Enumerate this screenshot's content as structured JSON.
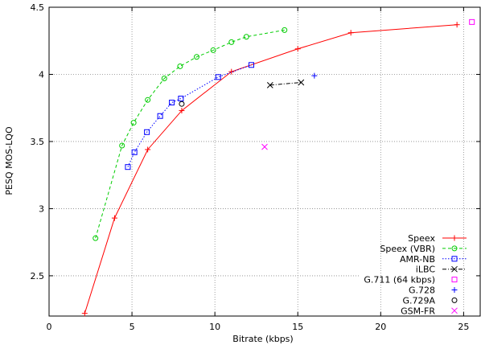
{
  "chart_data": {
    "type": "scatter",
    "title": "",
    "xlabel": "Bitrate (kbps)",
    "ylabel": "PESQ MOS-LQO",
    "xlim": [
      0,
      26
    ],
    "ylim": [
      2.2,
      4.5
    ],
    "xticks": [
      0,
      5,
      10,
      15,
      20,
      25
    ],
    "yticks": [
      2.5,
      3,
      3.5,
      4,
      4.5
    ],
    "xtick_labels": [
      "0",
      "5",
      "10",
      "15",
      "20",
      "25"
    ],
    "ytick_labels": [
      "2.5",
      "3",
      "3.5",
      "4",
      "4.5"
    ],
    "grid": true,
    "legend_position": "bottom-right",
    "series": [
      {
        "name": "Speex",
        "color": "#ff0000",
        "marker": "plus",
        "line": "solid",
        "x": [
          2.15,
          3.95,
          5.95,
          8.0,
          11.0,
          15.0,
          18.2,
          24.6
        ],
        "y": [
          2.22,
          2.93,
          3.44,
          3.73,
          4.02,
          4.19,
          4.31,
          4.37
        ]
      },
      {
        "name": "Speex (VBR)",
        "color": "#00cc00",
        "marker": "circle",
        "line": "dashed",
        "x": [
          2.8,
          4.4,
          5.1,
          5.95,
          6.95,
          7.9,
          8.9,
          9.9,
          11.0,
          11.9,
          14.2
        ],
        "y": [
          2.78,
          3.47,
          3.64,
          3.81,
          3.97,
          4.06,
          4.13,
          4.18,
          4.24,
          4.28,
          4.33
        ]
      },
      {
        "name": "AMR-NB",
        "color": "#0000ff",
        "marker": "square",
        "line": "dotted",
        "x": [
          4.75,
          5.15,
          5.9,
          6.7,
          7.4,
          7.95,
          10.2,
          12.2
        ],
        "y": [
          3.31,
          3.42,
          3.57,
          3.69,
          3.79,
          3.82,
          3.98,
          4.07
        ]
      },
      {
        "name": "iLBC",
        "color": "#000000",
        "marker": "x",
        "line": "dashdot",
        "x": [
          13.33,
          15.2
        ],
        "y": [
          3.92,
          3.94
        ]
      },
      {
        "name": "G.711 (64 kbps)",
        "color": "#ff00ff",
        "marker": "square",
        "line": "none",
        "x": [
          25.5
        ],
        "y": [
          4.39
        ]
      },
      {
        "name": "G.728",
        "color": "#0000ff",
        "marker": "plus",
        "line": "none",
        "x": [
          16.0
        ],
        "y": [
          3.99
        ]
      },
      {
        "name": "G.729A",
        "color": "#000000",
        "marker": "circle",
        "line": "none",
        "x": [
          8.0
        ],
        "y": [
          3.78
        ]
      },
      {
        "name": "GSM-FR",
        "color": "#ff00ff",
        "marker": "x",
        "line": "none",
        "x": [
          13.0
        ],
        "y": [
          3.46
        ]
      }
    ]
  }
}
